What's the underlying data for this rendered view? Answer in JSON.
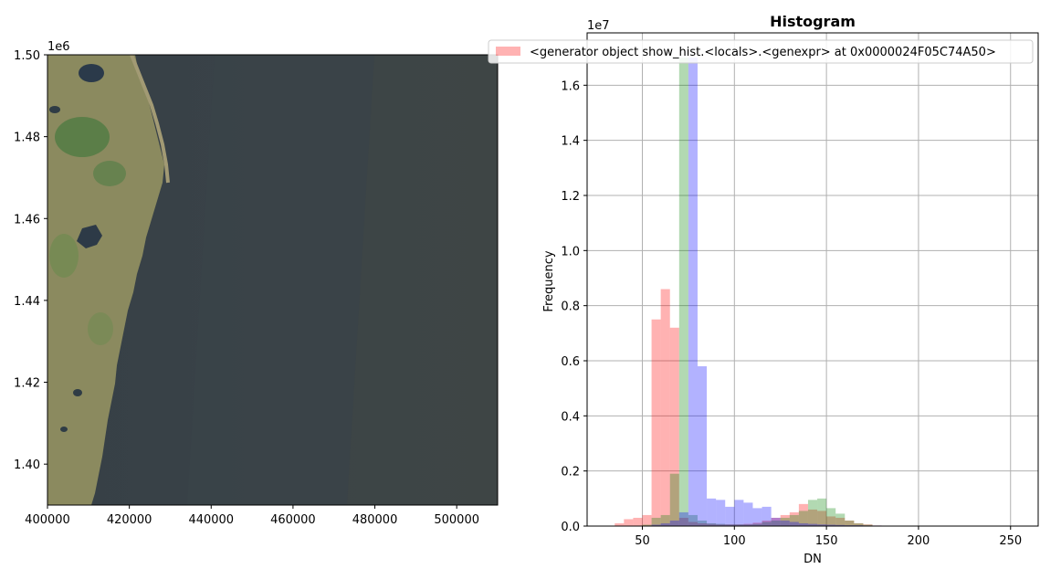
{
  "chart_data": [
    {
      "type": "image",
      "xlim": [
        400000,
        510000
      ],
      "ylim": [
        1390000,
        1500000
      ],
      "y_offset_label": "1e6",
      "x_ticks": [
        {
          "value": 400000,
          "label": "400000"
        },
        {
          "value": 420000,
          "label": "420000"
        },
        {
          "value": 440000,
          "label": "440000"
        },
        {
          "value": 460000,
          "label": "460000"
        },
        {
          "value": 480000,
          "label": "480000"
        },
        {
          "value": 500000,
          "label": "500000"
        }
      ],
      "y_ticks": [
        {
          "value": 1400000,
          "label": "1.40"
        },
        {
          "value": 1420000,
          "label": "1.42"
        },
        {
          "value": 1440000,
          "label": "1.44"
        },
        {
          "value": 1460000,
          "label": "1.46"
        },
        {
          "value": 1480000,
          "label": "1.48"
        },
        {
          "value": 1500000,
          "label": "1.50"
        }
      ],
      "colors": {
        "sea": "#3a4349",
        "land": "#8a8a5e",
        "vegetation": "#4f7a42",
        "lake": "#2b3a4a"
      }
    },
    {
      "type": "histogram",
      "title": "Histogram",
      "xlabel": "DN",
      "ylabel": "Frequency",
      "y_offset_label": "1e7",
      "xlim": [
        20,
        265
      ],
      "ylim": [
        0,
        17900000
      ],
      "grid": true,
      "legend_position": "top-right",
      "legend_label": "<generator object show_hist.<locals>.<genexpr> at 0x0000024F05C74A50>",
      "bin_width": 5,
      "x_ticks": [
        {
          "value": 50,
          "label": "50"
        },
        {
          "value": 100,
          "label": "100"
        },
        {
          "value": 150,
          "label": "150"
        },
        {
          "value": 200,
          "label": "200"
        },
        {
          "value": 250,
          "label": "250"
        }
      ],
      "y_ticks": [
        {
          "value": 0,
          "label": "0.0"
        },
        {
          "value": 2000000,
          "label": "0.2"
        },
        {
          "value": 4000000,
          "label": "0.4"
        },
        {
          "value": 6000000,
          "label": "0.6"
        },
        {
          "value": 8000000,
          "label": "0.8"
        },
        {
          "value": 10000000,
          "label": "1.0"
        },
        {
          "value": 12000000,
          "label": "1.2"
        },
        {
          "value": 14000000,
          "label": "1.4"
        },
        {
          "value": 16000000,
          "label": "1.6"
        }
      ],
      "series": [
        {
          "color": "#ff0000",
          "alpha": 0.3,
          "bins": [
            {
              "x": 35,
              "v": 100000
            },
            {
              "x": 40,
              "v": 250000
            },
            {
              "x": 45,
              "v": 300000
            },
            {
              "x": 50,
              "v": 400000
            },
            {
              "x": 55,
              "v": 7500000
            },
            {
              "x": 60,
              "v": 8600000
            },
            {
              "x": 65,
              "v": 7200000
            },
            {
              "x": 70,
              "v": 300000
            },
            {
              "x": 75,
              "v": 150000
            },
            {
              "x": 80,
              "v": 100000
            },
            {
              "x": 85,
              "v": 80000
            },
            {
              "x": 90,
              "v": 60000
            },
            {
              "x": 95,
              "v": 60000
            },
            {
              "x": 100,
              "v": 60000
            },
            {
              "x": 105,
              "v": 80000
            },
            {
              "x": 110,
              "v": 120000
            },
            {
              "x": 115,
              "v": 200000
            },
            {
              "x": 120,
              "v": 300000
            },
            {
              "x": 125,
              "v": 400000
            },
            {
              "x": 130,
              "v": 500000
            },
            {
              "x": 135,
              "v": 800000
            },
            {
              "x": 140,
              "v": 600000
            },
            {
              "x": 145,
              "v": 550000
            },
            {
              "x": 150,
              "v": 350000
            },
            {
              "x": 155,
              "v": 300000
            },
            {
              "x": 160,
              "v": 200000
            },
            {
              "x": 165,
              "v": 100000
            },
            {
              "x": 170,
              "v": 60000
            },
            {
              "x": 175,
              "v": 20000
            }
          ]
        },
        {
          "color": "#008000",
          "alpha": 0.3,
          "bins": [
            {
              "x": 50,
              "v": 50000
            },
            {
              "x": 55,
              "v": 300000
            },
            {
              "x": 60,
              "v": 400000
            },
            {
              "x": 65,
              "v": 1900000
            },
            {
              "x": 70,
              "v": 17000000
            },
            {
              "x": 75,
              "v": 400000
            },
            {
              "x": 80,
              "v": 200000
            },
            {
              "x": 85,
              "v": 100000
            },
            {
              "x": 90,
              "v": 80000
            },
            {
              "x": 95,
              "v": 60000
            },
            {
              "x": 100,
              "v": 60000
            },
            {
              "x": 105,
              "v": 60000
            },
            {
              "x": 110,
              "v": 80000
            },
            {
              "x": 115,
              "v": 150000
            },
            {
              "x": 120,
              "v": 200000
            },
            {
              "x": 125,
              "v": 300000
            },
            {
              "x": 130,
              "v": 400000
            },
            {
              "x": 135,
              "v": 550000
            },
            {
              "x": 140,
              "v": 950000
            },
            {
              "x": 145,
              "v": 1000000
            },
            {
              "x": 150,
              "v": 650000
            },
            {
              "x": 155,
              "v": 450000
            },
            {
              "x": 160,
              "v": 200000
            },
            {
              "x": 165,
              "v": 100000
            },
            {
              "x": 170,
              "v": 50000
            }
          ]
        },
        {
          "color": "#0000ff",
          "alpha": 0.3,
          "bins": [
            {
              "x": 55,
              "v": 50000
            },
            {
              "x": 60,
              "v": 100000
            },
            {
              "x": 65,
              "v": 200000
            },
            {
              "x": 70,
              "v": 500000
            },
            {
              "x": 75,
              "v": 17000000
            },
            {
              "x": 80,
              "v": 5800000
            },
            {
              "x": 85,
              "v": 1000000
            },
            {
              "x": 90,
              "v": 950000
            },
            {
              "x": 95,
              "v": 700000
            },
            {
              "x": 100,
              "v": 950000
            },
            {
              "x": 105,
              "v": 850000
            },
            {
              "x": 110,
              "v": 650000
            },
            {
              "x": 115,
              "v": 700000
            },
            {
              "x": 120,
              "v": 300000
            },
            {
              "x": 125,
              "v": 200000
            },
            {
              "x": 130,
              "v": 150000
            },
            {
              "x": 135,
              "v": 100000
            },
            {
              "x": 140,
              "v": 80000
            },
            {
              "x": 145,
              "v": 60000
            },
            {
              "x": 150,
              "v": 50000
            },
            {
              "x": 155,
              "v": 40000
            },
            {
              "x": 160,
              "v": 30000
            },
            {
              "x": 165,
              "v": 30000
            },
            {
              "x": 170,
              "v": 20000
            },
            {
              "x": 175,
              "v": 20000
            },
            {
              "x": 180,
              "v": 15000
            },
            {
              "x": 185,
              "v": 15000
            },
            {
              "x": 190,
              "v": 10000
            },
            {
              "x": 195,
              "v": 10000
            },
            {
              "x": 200,
              "v": 10000
            },
            {
              "x": 205,
              "v": 8000
            },
            {
              "x": 210,
              "v": 8000
            },
            {
              "x": 215,
              "v": 6000
            },
            {
              "x": 220,
              "v": 6000
            },
            {
              "x": 225,
              "v": 5000
            },
            {
              "x": 230,
              "v": 5000
            },
            {
              "x": 235,
              "v": 4000
            },
            {
              "x": 240,
              "v": 4000
            },
            {
              "x": 245,
              "v": 4000
            },
            {
              "x": 250,
              "v": 3000
            }
          ]
        }
      ]
    }
  ]
}
